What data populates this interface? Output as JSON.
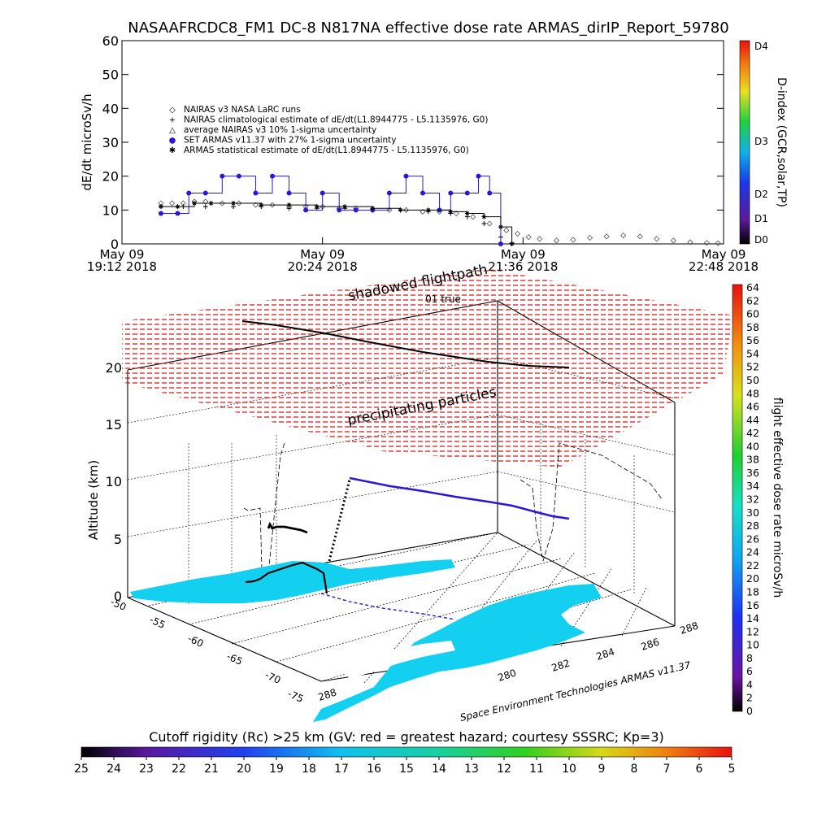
{
  "page": {
    "title": "NASAAFRCDC8_FM1 DC-8    N817NA effective dose rate ARMAS_dirIP_Report_59780",
    "footer_credit": "Space Environment Technologies ARMAS v11.37",
    "cutoff_caption": "Cutoff rigidity (Rc) >25 km (GV: red = greatest hazard; courtesy SSSRC; Kp=3)"
  },
  "timeseries": {
    "ylabel": "dE/dt microSv/h",
    "right_label": "D-index (GCR,solar,TP)",
    "yticks": [
      "0",
      "10",
      "20",
      "30",
      "40",
      "50",
      "60"
    ],
    "xticks": [
      {
        "line1": "May 09",
        "line2": "19:12 2018"
      },
      {
        "line1": "May 09",
        "line2": "20:24 2018"
      },
      {
        "line1": "May 09",
        "line2": "21:36 2018"
      },
      {
        "line1": "May 09",
        "line2": "22:48 2018"
      }
    ],
    "dindex_ticks": [
      "D4",
      "D3",
      "D2",
      "D1",
      "D0"
    ],
    "legend": [
      {
        "symbol": "◇",
        "text": "NAIRAS v3 NASA LaRC runs"
      },
      {
        "symbol": "+",
        "text": "NAIRAS climatological estimate of dE/dt(L1.8944775 - L5.1135976, G0)"
      },
      {
        "symbol": "△",
        "text": "average NAIRAS v3 10% 1-sigma uncertainty"
      },
      {
        "symbol": "●",
        "text": "SET ARMAS v11.37 with 27% 1-sigma uncertainty"
      },
      {
        "symbol": "✱",
        "text": "ARMAS statistical estimate of dE/dt(L1.8944775 - L5.1135976, G0)"
      }
    ]
  },
  "chart_data": [
    {
      "type": "line",
      "title": "NASAAFRCDC8_FM1 DC-8    N817NA effective dose rate ARMAS_dirIP_Report_59780",
      "xlabel": "",
      "ylabel": "dE/dt microSv/h",
      "x_unit": "minutes after 19:12 UT, May 09 2018",
      "xlim": [
        0,
        216
      ],
      "ylim": [
        0,
        60
      ],
      "series": [
        {
          "name": "NAIRAS v3 NASA LaRC runs",
          "x": [
            14,
            18,
            22,
            26,
            30,
            36,
            42,
            48,
            54,
            60,
            66,
            72,
            78,
            84,
            90,
            96,
            102,
            108,
            114,
            120,
            126,
            132,
            138,
            142,
            146,
            150,
            156,
            162,
            168,
            174,
            180,
            186,
            192,
            198,
            204,
            210,
            214
          ],
          "values": [
            12,
            12,
            12,
            12.5,
            12.5,
            12,
            12,
            11.5,
            11.5,
            11,
            11,
            11,
            10.5,
            10.5,
            10,
            10,
            10,
            9.5,
            9.5,
            9,
            8,
            6,
            4,
            3,
            2,
            1.5,
            1,
            1.2,
            1.8,
            2.2,
            2.5,
            2.2,
            1.5,
            1,
            0.5,
            0.3,
            0.2
          ]
        },
        {
          "name": "NAIRAS climatological estimate of dE/dt(L1.8944775 - L5.1135976, G0)",
          "x": [
            14,
            22,
            30,
            40,
            50,
            60,
            70,
            80,
            90,
            100,
            110,
            118,
            124,
            130,
            136,
            140
          ],
          "values": [
            11,
            11,
            11,
            11,
            11,
            10.5,
            10.5,
            10.5,
            10,
            10,
            9.5,
            9,
            8,
            6,
            2,
            0.2
          ]
        },
        {
          "name": "SET ARMAS v11.37 with 27% 1-sigma uncertainty",
          "x": [
            14,
            20,
            24,
            30,
            36,
            42,
            48,
            54,
            60,
            66,
            72,
            78,
            84,
            90,
            96,
            102,
            108,
            114,
            118,
            124,
            128,
            132,
            136
          ],
          "values": [
            9,
            9,
            15,
            15,
            20,
            20,
            15,
            20,
            15,
            10,
            15,
            10,
            10,
            10,
            15,
            20,
            15,
            10,
            15,
            15,
            20,
            15,
            0
          ]
        },
        {
          "name": "ARMAS statistical estimate of dE/dt(L1.8944775 - L5.1135976, G0)",
          "x": [
            14,
            20,
            26,
            32,
            40,
            50,
            60,
            70,
            80,
            90,
            100,
            110,
            118,
            124,
            130,
            136,
            140
          ],
          "values": [
            11,
            11,
            12,
            12,
            12,
            11.5,
            11.5,
            11,
            11,
            10.5,
            10,
            10,
            9.5,
            9,
            8,
            5,
            0
          ]
        }
      ]
    },
    {
      "type": "heatmap",
      "title": "shadowed flightpath",
      "subtitle": "precipitating particles",
      "label_true": "01 true",
      "zlabel": "Altitude (km)",
      "zticks": [
        "0",
        "5",
        "10",
        "15",
        "20"
      ],
      "lat_ticks": [
        "-50",
        "-55",
        "-60",
        "-65",
        "-70",
        "-75"
      ],
      "lon_ticks": [
        "288",
        "286",
        "284",
        "282",
        "280",
        "288"
      ],
      "colorbar_right": {
        "label": "flight effective dose rate microSv/h",
        "ticks": [
          "64",
          "62",
          "60",
          "58",
          "56",
          "54",
          "52",
          "50",
          "48",
          "46",
          "44",
          "42",
          "40",
          "38",
          "36",
          "34",
          "32",
          "30",
          "28",
          "26",
          "24",
          "22",
          "20",
          "18",
          "16",
          "14",
          "12",
          "10",
          "8",
          "6",
          "4",
          "2",
          "0"
        ]
      },
      "colorbar_bottom": {
        "ticks": [
          "25",
          "24",
          "23",
          "22",
          "21",
          "20",
          "19",
          "18",
          "17",
          "16",
          "15",
          "14",
          "13",
          "12",
          "11",
          "10",
          "9",
          "8",
          "7",
          "6",
          "5"
        ]
      }
    }
  ],
  "colors": {
    "armas_points": "#2a18d6",
    "hazard_dashes": "#d81e1e",
    "land": "#14d0f0",
    "flight_track_high": "#2a18d6"
  }
}
